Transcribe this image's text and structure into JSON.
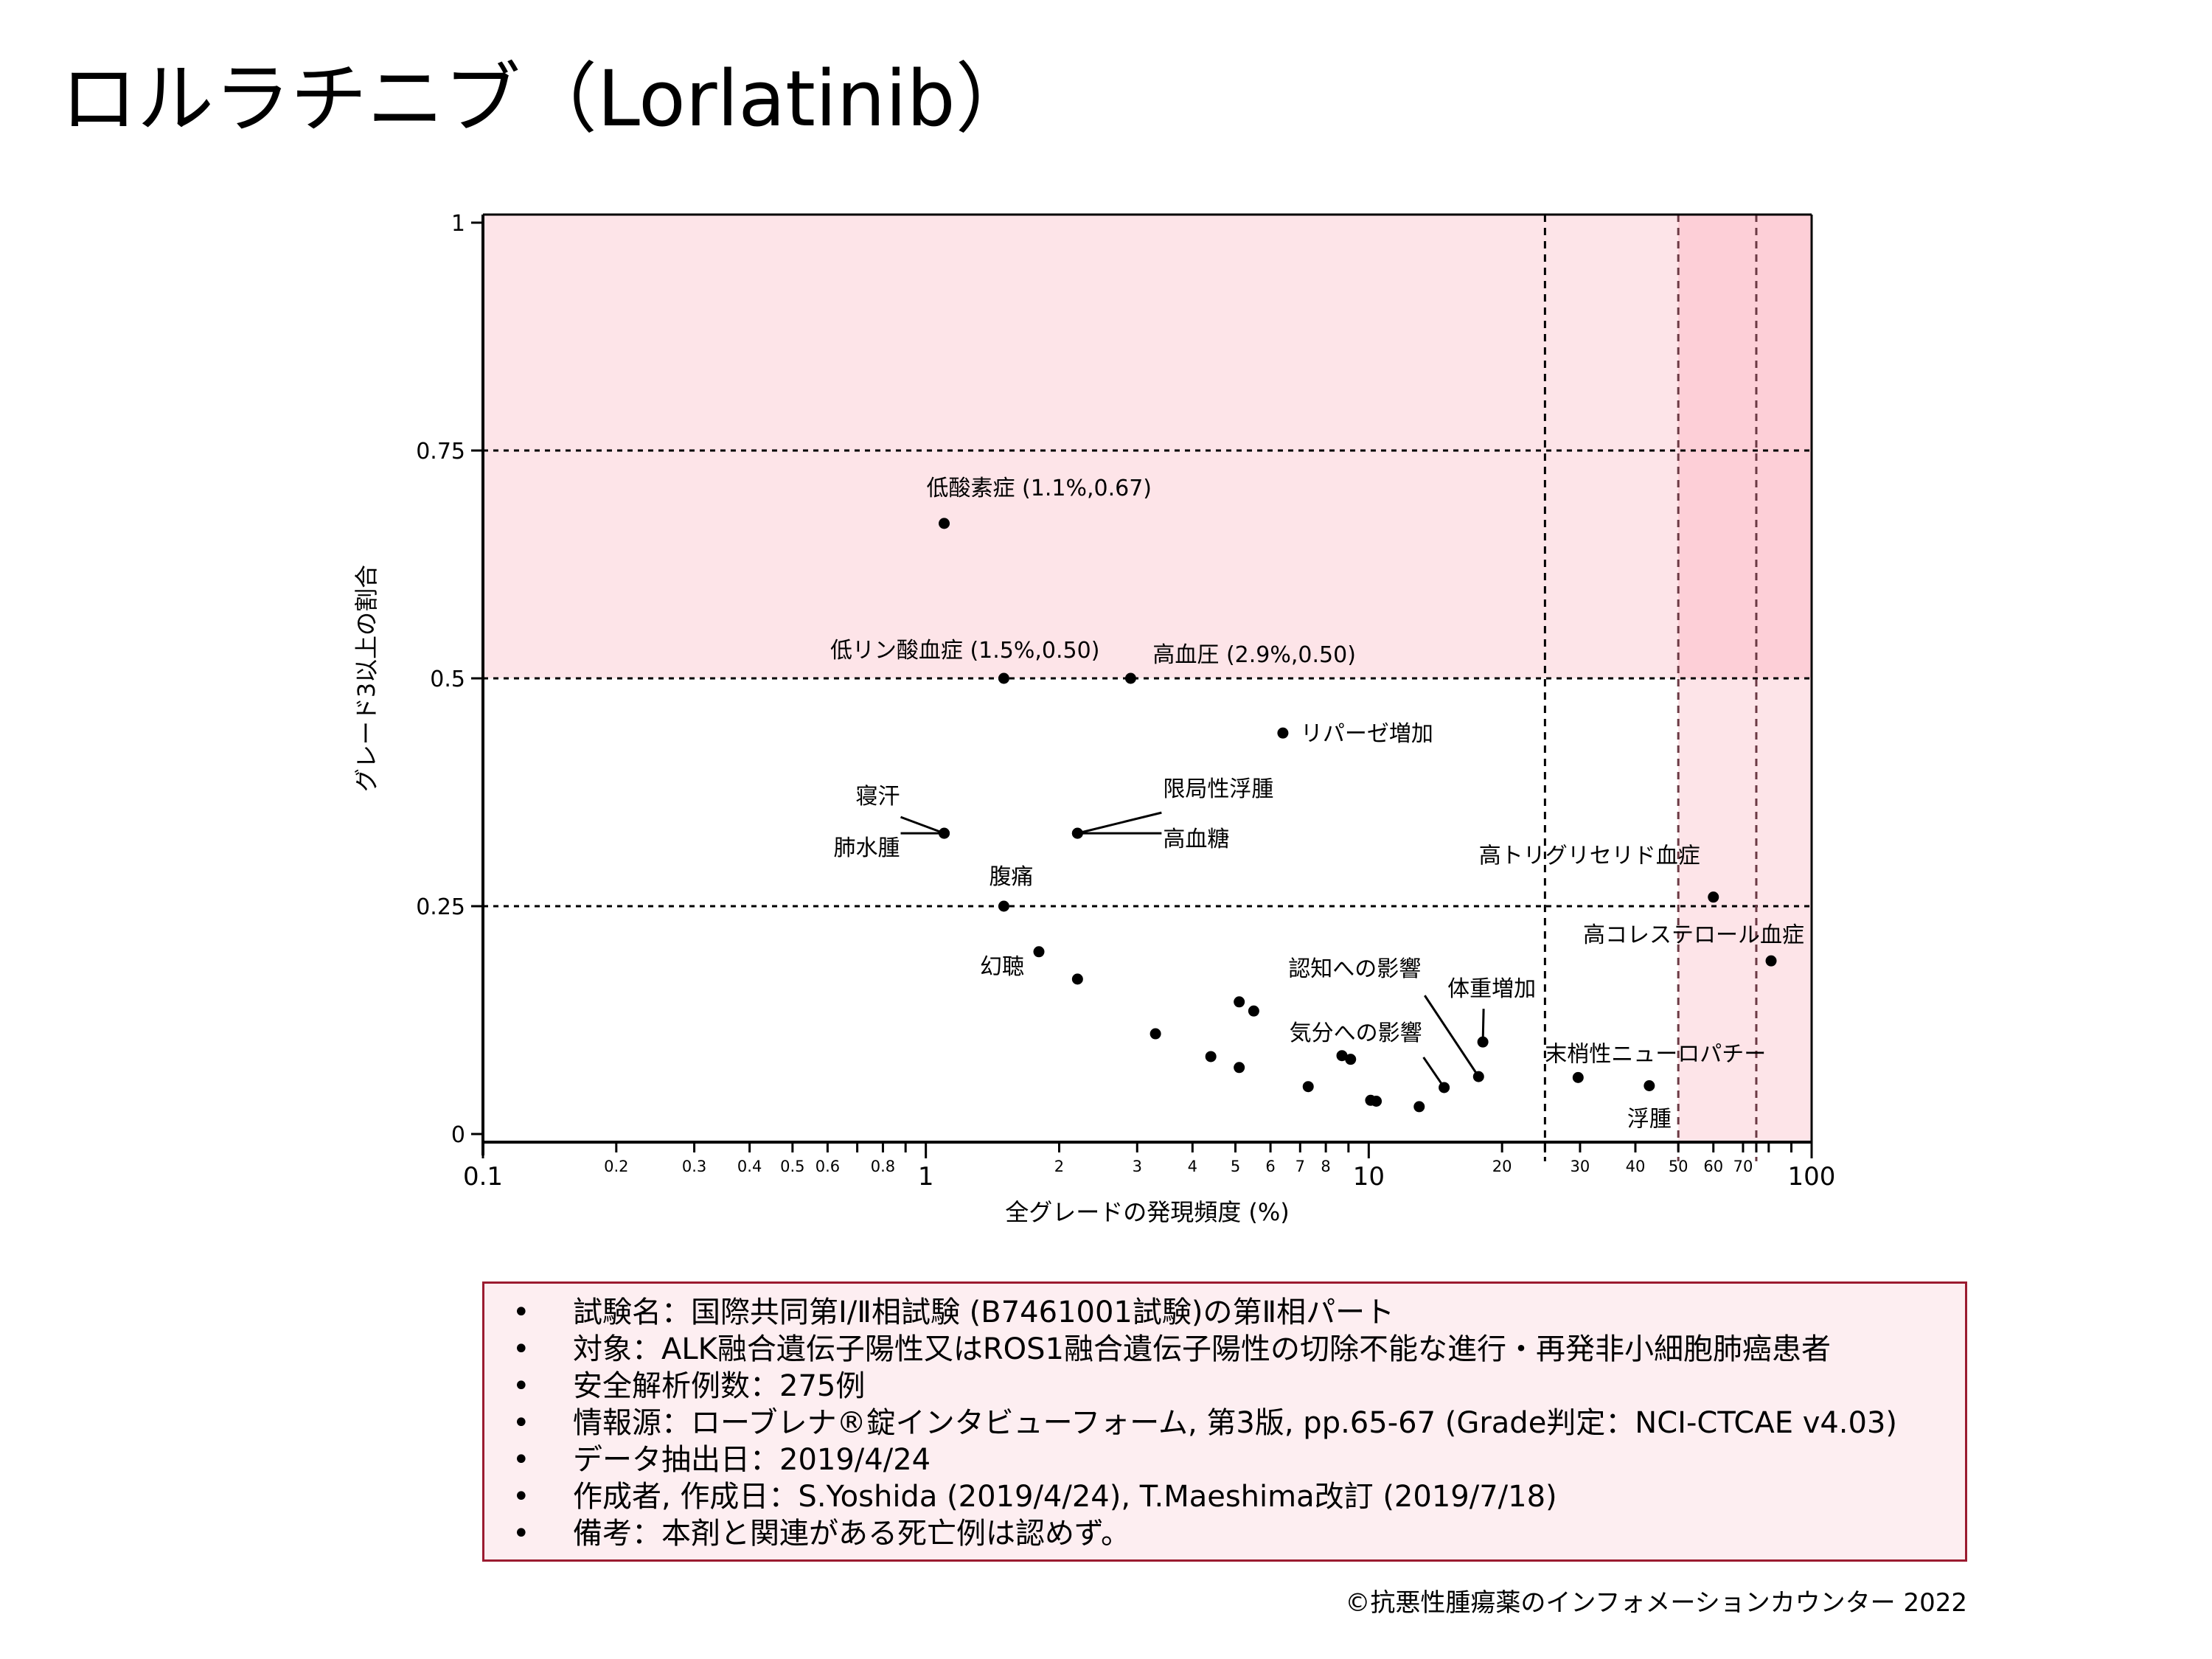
{
  "page": {
    "title": "ロルラチニブ（Lorlatinib）"
  },
  "colors": {
    "pink_region": "#FDE4E8",
    "pink_overlap": "#FDCFD7",
    "box_border": "#9B1B30",
    "box_fill": "#FDEEF1",
    "vline_color": "#6B3A44"
  },
  "chart_data": {
    "type": "scatter",
    "xscale": "log",
    "xlabel": "全グレードの発現頻度 (%)",
    "ylabel": "グレード3以上の割合",
    "xlim": [
      0.1,
      100
    ],
    "ylim": [
      0,
      1
    ],
    "x_major_ticks": [
      {
        "value": 0.1,
        "label": "0.1"
      },
      {
        "value": 1,
        "label": "1"
      },
      {
        "value": 10,
        "label": "10"
      },
      {
        "value": 100,
        "label": "100"
      }
    ],
    "x_minor_ticks": [
      {
        "value": 0.2,
        "label": "0.2"
      },
      {
        "value": 0.3,
        "label": "0.3"
      },
      {
        "value": 0.4,
        "label": "0.4"
      },
      {
        "value": 0.5,
        "label": "0.5"
      },
      {
        "value": 0.6,
        "label": "0.6"
      },
      {
        "value": 0.7,
        "label": ""
      },
      {
        "value": 0.8,
        "label": "0.8"
      },
      {
        "value": 0.9,
        "label": ""
      },
      {
        "value": 2,
        "label": "2"
      },
      {
        "value": 3,
        "label": "3"
      },
      {
        "value": 4,
        "label": "4"
      },
      {
        "value": 5,
        "label": "5"
      },
      {
        "value": 6,
        "label": "6"
      },
      {
        "value": 7,
        "label": "7"
      },
      {
        "value": 8,
        "label": "8"
      },
      {
        "value": 9,
        "label": ""
      },
      {
        "value": 20,
        "label": "20"
      },
      {
        "value": 25,
        "label": ""
      },
      {
        "value": 30,
        "label": "30"
      },
      {
        "value": 40,
        "label": "40"
      },
      {
        "value": 50,
        "label": "50"
      },
      {
        "value": 60,
        "label": "60"
      },
      {
        "value": 70,
        "label": "70"
      },
      {
        "value": 75,
        "label": ""
      },
      {
        "value": 80,
        "label": ""
      },
      {
        "value": 90,
        "label": ""
      }
    ],
    "y_ticks": [
      {
        "value": 0,
        "label": "0"
      },
      {
        "value": 0.25,
        "label": "0.25"
      },
      {
        "value": 0.5,
        "label": "0.5"
      },
      {
        "value": 0.75,
        "label": "0.75"
      },
      {
        "value": 1,
        "label": "1"
      }
    ],
    "h_gridlines": [
      0.25,
      0.5,
      0.75
    ],
    "v_gridlines": [
      25,
      50,
      75
    ],
    "shaded_regions": [
      {
        "x": [
          0.1,
          100
        ],
        "y": [
          0.5,
          1
        ]
      },
      {
        "x": [
          50,
          100
        ],
        "y": [
          0,
          1
        ]
      }
    ],
    "points": [
      {
        "x": 1.1,
        "y": 0.67,
        "label": "低酸素症 (1.1%,0.67)"
      },
      {
        "x": 1.5,
        "y": 0.5,
        "label": "低リン酸血症 (1.5%,0.50)"
      },
      {
        "x": 2.9,
        "y": 0.5,
        "label": "高血圧 (2.9%,0.50)"
      },
      {
        "x": 6.4,
        "y": 0.44,
        "label": "リパーゼ増加"
      },
      {
        "x": 1.1,
        "y": 0.33,
        "label": "寝汗"
      },
      {
        "x": 1.1,
        "y": 0.33,
        "label": "肺水腫"
      },
      {
        "x": 2.2,
        "y": 0.33,
        "label": "限局性浮腫"
      },
      {
        "x": 2.2,
        "y": 0.33,
        "label": "高血糖"
      },
      {
        "x": 1.5,
        "y": 0.25,
        "label": "腹痛"
      },
      {
        "x": 1.8,
        "y": 0.2,
        "label": "幻聴"
      },
      {
        "x": 2.2,
        "y": 0.17,
        "label": ""
      },
      {
        "x": 3.3,
        "y": 0.11,
        "label": ""
      },
      {
        "x": 4.4,
        "y": 0.085,
        "label": ""
      },
      {
        "x": 5.1,
        "y": 0.145,
        "label": ""
      },
      {
        "x": 5.5,
        "y": 0.135,
        "label": ""
      },
      {
        "x": 5.1,
        "y": 0.073,
        "label": ""
      },
      {
        "x": 7.3,
        "y": 0.052,
        "label": ""
      },
      {
        "x": 8.7,
        "y": 0.086,
        "label": ""
      },
      {
        "x": 9.1,
        "y": 0.082,
        "label": ""
      },
      {
        "x": 10.1,
        "y": 0.037,
        "label": ""
      },
      {
        "x": 10.4,
        "y": 0.036,
        "label": ""
      },
      {
        "x": 13.0,
        "y": 0.03,
        "label": ""
      },
      {
        "x": 14.8,
        "y": 0.051,
        "label": "気分への影響"
      },
      {
        "x": 17.7,
        "y": 0.063,
        "label": "認知への影響"
      },
      {
        "x": 18.1,
        "y": 0.101,
        "label": "体重増加"
      },
      {
        "x": 29.7,
        "y": 0.062,
        "label": "末梢性ニューロパチー"
      },
      {
        "x": 43.0,
        "y": 0.053,
        "label": "浮腫"
      },
      {
        "x": 60.0,
        "y": 0.26,
        "label": "高トリグリセリド血症"
      },
      {
        "x": 81.0,
        "y": 0.19,
        "label": "高コレステロール血症"
      }
    ]
  },
  "info": {
    "bullet": "•",
    "items": [
      "試験名：国際共同第Ⅰ/Ⅱ相試験 (B7461001試験)の第Ⅱ相パート",
      "対象：ALK融合遺伝子陽性又はROS1融合遺伝子陽性の切除不能な進行・再発非小細胞肺癌患者",
      "安全解析例数：275例",
      "情報源：ローブレナ®錠インタビューフォーム, 第3版, pp.65-67 (Grade判定：NCI-CTCAE v4.03)",
      "データ抽出日：2019/4/24",
      "作成者, 作成日：S.Yoshida (2019/4/24), T.Maeshima改訂 (2019/7/18)",
      "備考：本剤と関連がある死亡例は認めず。"
    ]
  },
  "footer": {
    "copyright": "©抗悪性腫瘍薬のインフォメーションカウンター  2022"
  }
}
